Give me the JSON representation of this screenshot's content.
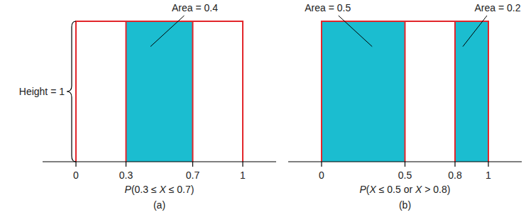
{
  "chart_data": [
    {
      "type": "area",
      "xlabel": "P(0.3 ≤ X ≤ 0.7)",
      "caption": "(a)",
      "xlim": [
        -0.2,
        1.2
      ],
      "ylim": [
        0,
        1
      ],
      "xticks": [
        0,
        0.3,
        0.7,
        1
      ],
      "tick_labels": "x",
      "height_label": "Height = 1",
      "density": {
        "x": [
          0,
          1
        ],
        "height": 1,
        "color": "#e2262b"
      },
      "regions": [
        {
          "x": [
            0.3,
            0.7
          ],
          "value": 0.4,
          "label": "Area = 0.4",
          "color": "#1bbdd0"
        }
      ]
    },
    {
      "type": "area",
      "xlabel": "P(X ≤ 0.5 or X > 0.8)",
      "caption": "(b)",
      "xlim": [
        -0.2,
        1.2
      ],
      "ylim": [
        0,
        1
      ],
      "xticks": [
        0,
        0.5,
        0.8,
        1
      ],
      "tick_labels": "x",
      "density": {
        "x": [
          0,
          1
        ],
        "height": 1,
        "color": "#e2262b"
      },
      "regions": [
        {
          "x": [
            0,
            0.5
          ],
          "value": 0.5,
          "label": "Area = 0.5",
          "color": "#1bbdd0"
        },
        {
          "x": [
            0.8,
            1
          ],
          "value": 0.2,
          "label": "Area = 0.2",
          "color": "#1bbdd0"
        }
      ]
    }
  ]
}
